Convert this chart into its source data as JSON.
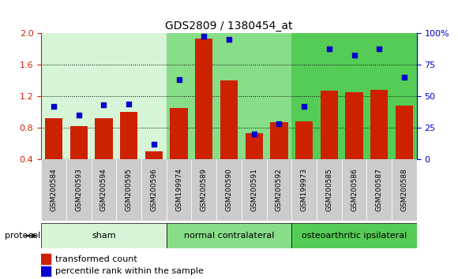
{
  "title": "GDS2809 / 1380454_at",
  "samples": [
    "GSM200584",
    "GSM200593",
    "GSM200594",
    "GSM200595",
    "GSM200596",
    "GSM199974",
    "GSM200589",
    "GSM200590",
    "GSM200591",
    "GSM200592",
    "GSM199973",
    "GSM200585",
    "GSM200586",
    "GSM200587",
    "GSM200588"
  ],
  "bar_values": [
    0.92,
    0.82,
    0.92,
    1.0,
    0.5,
    1.05,
    1.93,
    1.4,
    0.73,
    0.87,
    0.88,
    1.27,
    1.25,
    1.28,
    1.08
  ],
  "dot_values_pct": [
    42,
    35,
    43,
    44,
    12,
    63,
    98,
    95,
    20,
    28,
    42,
    88,
    83,
    88,
    65
  ],
  "bar_color": "#cc2200",
  "dot_color": "#0000cc",
  "ylim": [
    0.4,
    2.0
  ],
  "y2lim": [
    0,
    100
  ],
  "yticks": [
    0.4,
    0.8,
    1.2,
    1.6,
    2.0
  ],
  "y2ticks": [
    0,
    25,
    50,
    75,
    100
  ],
  "groups": [
    {
      "label": "sham",
      "start": 0,
      "end": 4,
      "color": "#d6f5d6"
    },
    {
      "label": "normal contralateral",
      "start": 5,
      "end": 9,
      "color": "#88dd88"
    },
    {
      "label": "osteoarthritic ipsilateral",
      "start": 10,
      "end": 14,
      "color": "#55cc55"
    }
  ],
  "protocol_label": "protocol",
  "legend1": "transformed count",
  "legend2": "percentile rank within the sample",
  "title_fontsize": 10,
  "tick_fontsize": 8,
  "label_fontsize": 8
}
